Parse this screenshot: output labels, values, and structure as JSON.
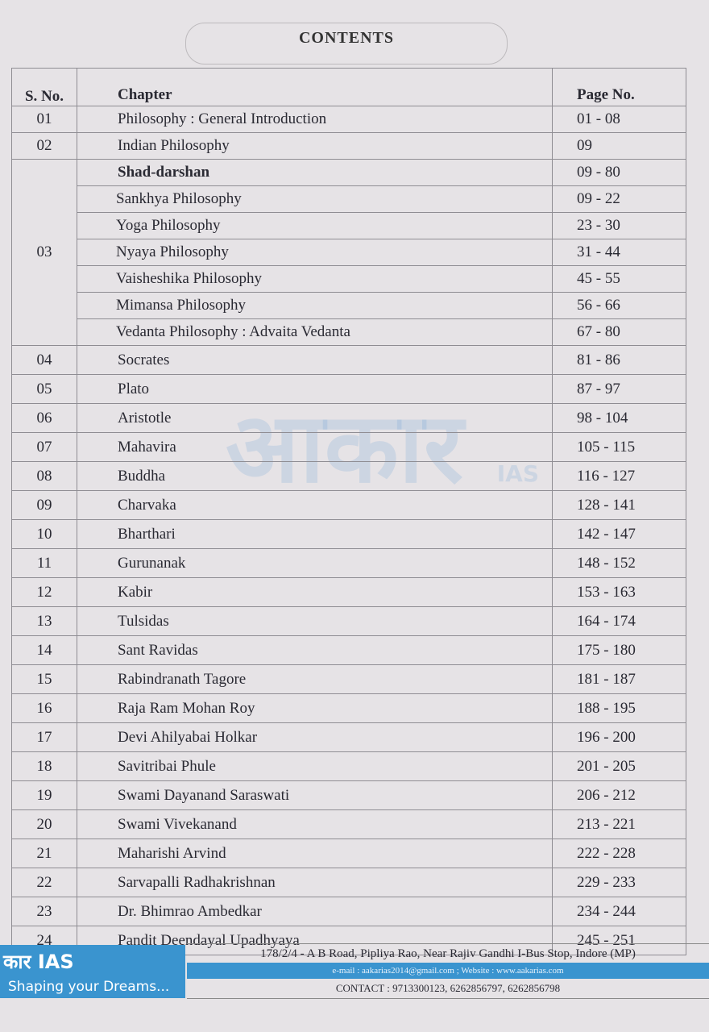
{
  "title": "CONTENTS",
  "headers": {
    "sno": "S. No.",
    "chapter": "Chapter",
    "page": "Page No."
  },
  "rows": [
    {
      "sno": "01",
      "chapter": "Philosophy : General Introduction",
      "page": "01 - 08"
    },
    {
      "sno": "02",
      "chapter": "Indian Philosophy",
      "page": "09"
    },
    {
      "sno": "03",
      "chapter": "Shad-darshan",
      "page": "09 - 80",
      "bold": true
    },
    {
      "sno": "",
      "chapter": "Sankhya Philosophy",
      "page": "09 - 22",
      "sub": true
    },
    {
      "sno": "",
      "chapter": "Yoga Philosophy",
      "page": "23 - 30",
      "sub": true
    },
    {
      "sno": "",
      "chapter": "Nyaya Philosophy",
      "page": "31 - 44",
      "sub": true
    },
    {
      "sno": "",
      "chapter": "Vaisheshika Philosophy",
      "page": "45 - 55",
      "sub": true
    },
    {
      "sno": "",
      "chapter": "Mimansa Philosophy",
      "page": "56 - 66",
      "sub": true
    },
    {
      "sno": "",
      "chapter": "Vedanta Philosophy : Advaita Vedanta",
      "page": "67 - 80",
      "sub": true
    },
    {
      "sno": "04",
      "chapter": "Socrates",
      "page": "81 - 86"
    },
    {
      "sno": "05",
      "chapter": "Plato",
      "page": "87 - 97"
    },
    {
      "sno": "06",
      "chapter": "Aristotle",
      "page": "98 - 104"
    },
    {
      "sno": "07",
      "chapter": "Mahavira",
      "page": "105 - 115"
    },
    {
      "sno": "08",
      "chapter": "Buddha",
      "page": "116 - 127"
    },
    {
      "sno": "09",
      "chapter": "Charvaka",
      "page": "128 - 141"
    },
    {
      "sno": "10",
      "chapter": "Bharthari",
      "page": "142 - 147"
    },
    {
      "sno": "11",
      "chapter": "Gurunanak",
      "page": "148 - 152"
    },
    {
      "sno": "12",
      "chapter": "Kabir",
      "page": "153 - 163"
    },
    {
      "sno": "13",
      "chapter": "Tulsidas",
      "page": "164 - 174"
    },
    {
      "sno": "14",
      "chapter": "Sant Ravidas",
      "page": "175 - 180"
    },
    {
      "sno": "15",
      "chapter": "Rabindranath Tagore",
      "page": "181 - 187"
    },
    {
      "sno": "16",
      "chapter": "Raja Ram Mohan Roy",
      "page": "188 - 195"
    },
    {
      "sno": "17",
      "chapter": "Devi Ahilyabai Holkar",
      "page": "196 - 200"
    },
    {
      "sno": "18",
      "chapter": "Savitribai Phule",
      "page": "201 - 205"
    },
    {
      "sno": "19",
      "chapter": "Swami Dayanand Saraswati",
      "page": "206 - 212"
    },
    {
      "sno": "20",
      "chapter": "Swami Vivekanand",
      "page": "213 - 221"
    },
    {
      "sno": "21",
      "chapter": "Maharishi Arvind",
      "page": "222 - 228"
    },
    {
      "sno": "22",
      "chapter": "Sarvapalli Radhakrishnan",
      "page": "229 - 233"
    },
    {
      "sno": "23",
      "chapter": "Dr. Bhimrao Ambedkar",
      "page": "234 - 244"
    },
    {
      "sno": "24",
      "chapter": "Pandit Deendayal Upadhyaya",
      "page": "245 - 251"
    }
  ],
  "watermark": {
    "text": "आकार",
    "suffix": "IAS"
  },
  "footer": {
    "logo": "कार IAS",
    "tagline": "Shaping your Dreams...",
    "address": "178/2/4 - A B Road, Pipliya Rao, Near Rajiv Gandhi I-Bus Stop, Indore (MP)",
    "web": "e-mail : aakarias2014@gmail.com ; Website : www.aakarias.com",
    "contact": "CONTACT : 9713300123, 6262856797, 6262856798"
  },
  "colors": {
    "brand_blue": "#3a94cf",
    "paper": "#e6e3e6"
  }
}
